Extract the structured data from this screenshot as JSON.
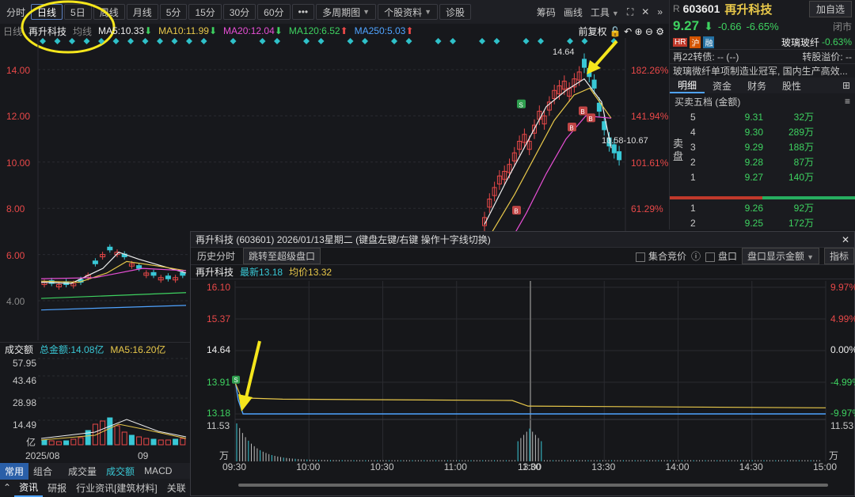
{
  "toolbar": {
    "items": [
      "分时",
      "日线",
      "5日",
      "周线",
      "月线",
      "5分",
      "15分",
      "30分",
      "60分",
      "•••",
      "多周期图",
      "个股资料",
      "诊股"
    ],
    "right": [
      "筹码",
      "画线",
      "工具"
    ]
  },
  "ma": {
    "period": "日线",
    "stock": "再升科技",
    "avg": "均线",
    "ma5": "MA5:10.33",
    "ma10": "MA10:11.99",
    "ma20": "MA20:12.04",
    "ma120": "MA120:6.52",
    "ma250": "MA250:5.03",
    "fq": "前复权"
  },
  "kline": {
    "y_left": [
      "14.00",
      "12.00",
      "10.00",
      "8.00",
      "6.00",
      "4.00"
    ],
    "y_right": [
      "182.26%",
      "141.94%",
      "101.61%",
      "61.29%"
    ],
    "hi_label": "14.64",
    "range_label": "10.58-10.67"
  },
  "volume": {
    "label": "成交额",
    "total": "总金额:14.08亿",
    "ma5": "MA5:16.20亿",
    "ticks": [
      "57.95",
      "43.46",
      "28.98",
      "14.49",
      "亿"
    ],
    "dates": [
      "2025/08",
      "09"
    ]
  },
  "bottom": {
    "row1": [
      "常用",
      "组合",
      "成交量",
      "成交额",
      "MACD"
    ],
    "row2": [
      "资讯",
      "研报",
      "行业资讯[建筑材料]",
      "关联"
    ]
  },
  "quote": {
    "prefix": "R",
    "code": "603601",
    "name": "再升科技",
    "add": "加自选",
    "price": "9.27",
    "change": "-0.66",
    "pct": "-6.65%",
    "status": "闭市",
    "tags": [
      "HR",
      "沪",
      "融"
    ],
    "sector": "玻璃玻纤",
    "sector_pct": "-0.63%",
    "bond": "再22转债: -- (--)",
    "premium": "转股溢价: --",
    "news": "玻璃微纤单项制造业冠军, 国内生产高效...",
    "tabs": [
      "明细",
      "资金",
      "财务",
      "股性"
    ],
    "ob_title": "买卖五档 (金额)",
    "sell_label": "卖盘",
    "asks": [
      [
        "5",
        "9.31",
        "32万"
      ],
      [
        "4",
        "9.30",
        "289万"
      ],
      [
        "3",
        "9.29",
        "188万"
      ],
      [
        "2",
        "9.28",
        "87万"
      ],
      [
        "1",
        "9.27",
        "140万"
      ]
    ],
    "bids": [
      [
        "1",
        "9.26",
        "92万"
      ],
      [
        "2",
        "9.25",
        "172万"
      ]
    ]
  },
  "popup": {
    "title": "再升科技 (603601)  2026/01/13星期二  (键盘左键/右键 操作十字线切换)",
    "hist": "历史分时",
    "jump": "跳转至超级盘口",
    "auction": "集合竞价",
    "pankou": "盘口",
    "display": "盘口显示金额",
    "zhibiao": "指标",
    "stock": "再升科技",
    "latest": "最新13.18",
    "avgp": "均价13.32",
    "y_left": [
      "16.10",
      "15.37",
      "14.64",
      "13.91",
      "13.18"
    ],
    "y_right": [
      "9.97%",
      "4.99%",
      "0.00%",
      "-4.99%",
      "-9.97%"
    ],
    "vol_top": "11.53",
    "vol_unit": "万",
    "times": [
      "09:30",
      "10:00",
      "10:30",
      "11:00",
      "11:30",
      "13:00",
      "13:30",
      "14:00",
      "14:30",
      "15:00"
    ]
  },
  "colors": {
    "up": "#e84848",
    "down": "#3ed260",
    "cyan": "#39c8d6"
  }
}
